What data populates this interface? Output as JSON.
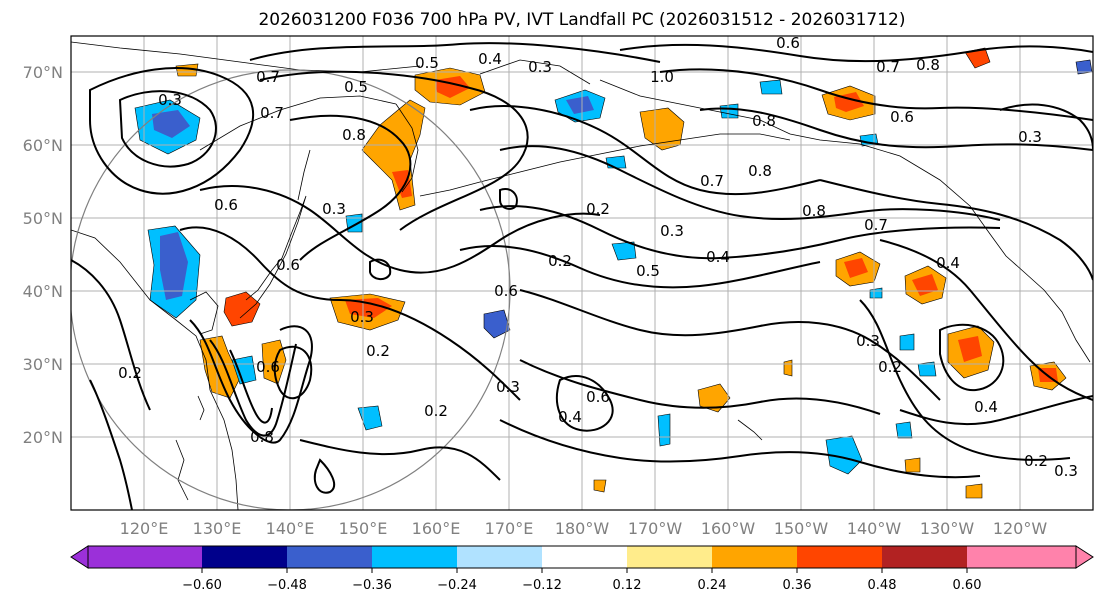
{
  "figure": {
    "title": "2026031200 F036 700 hPa PV, IVT Landfall PC (2026031512 - 2026031712)"
  },
  "map": {
    "longitude_labels": [
      "120°E",
      "130°E",
      "140°E",
      "150°E",
      "160°E",
      "170°E",
      "180°W",
      "170°W",
      "160°W",
      "150°W",
      "140°W",
      "130°W",
      "120°W"
    ],
    "latitude_labels": [
      "70°N",
      "60°N",
      "50°N",
      "40°N",
      "30°N",
      "20°N"
    ],
    "contour_labels": [
      {
        "text": "0.5"
      },
      {
        "text": "0.4"
      },
      {
        "text": "0.3"
      },
      {
        "text": "0.6"
      },
      {
        "text": "1.0"
      },
      {
        "text": "0.7"
      },
      {
        "text": "0.8"
      },
      {
        "text": "0.3"
      },
      {
        "text": "0.7"
      },
      {
        "text": "0.5"
      },
      {
        "text": "0.7"
      },
      {
        "text": "0.8"
      },
      {
        "text": "0.6"
      },
      {
        "text": "0.8"
      },
      {
        "text": "0.3"
      },
      {
        "text": "0.2"
      },
      {
        "text": "0.3"
      },
      {
        "text": "0.8"
      },
      {
        "text": "0.7"
      },
      {
        "text": "0.2"
      },
      {
        "text": "0.5"
      },
      {
        "text": "0.4"
      },
      {
        "text": "0.4"
      },
      {
        "text": "0.6"
      },
      {
        "text": "0.6"
      },
      {
        "text": "0.3"
      },
      {
        "text": "0.2"
      },
      {
        "text": "0.2"
      },
      {
        "text": "0.3"
      },
      {
        "text": "0.6"
      },
      {
        "text": "0.4"
      },
      {
        "text": "0.2"
      },
      {
        "text": "0.8"
      },
      {
        "text": "0.3"
      },
      {
        "text": "0.2"
      },
      {
        "text": "0.4"
      },
      {
        "text": "0.2"
      },
      {
        "text": "0.3"
      },
      {
        "text": "0.6"
      },
      {
        "text": "0.3"
      },
      {
        "text": "0.7"
      },
      {
        "text": "0.8"
      },
      {
        "text": "0.6"
      }
    ],
    "colors": {
      "coastline": "#000000",
      "grid": "#b0b0b0",
      "contour": "#000000"
    }
  },
  "colorbar": {
    "tick_labels": [
      "−0.60",
      "−0.48",
      "−0.36",
      "−0.24",
      "−0.12",
      "0.12",
      "0.24",
      "0.36",
      "0.48",
      "0.60"
    ],
    "bins": [
      {
        "range": "< -0.60",
        "color": "#9b30d9"
      },
      {
        "range": "-0.60 – -0.48",
        "color": "#00008b"
      },
      {
        "range": "-0.48 – -0.36",
        "color": "#3a5fcd"
      },
      {
        "range": "-0.36 – -0.24",
        "color": "#00bfff"
      },
      {
        "range": "-0.24 – -0.12",
        "color": "#b0e2ff"
      },
      {
        "range": "-0.12 – 0.12",
        "color": "#ffffff"
      },
      {
        "range": "0.12 – 0.24",
        "color": "#ffec8b"
      },
      {
        "range": "0.24 – 0.36",
        "color": "#ffa500"
      },
      {
        "range": "0.36 – 0.48",
        "color": "#ff4500"
      },
      {
        "range": "0.48 – 0.60",
        "color": "#b22222"
      },
      {
        "range": "> 0.60",
        "color": "#ff82ab"
      }
    ]
  }
}
